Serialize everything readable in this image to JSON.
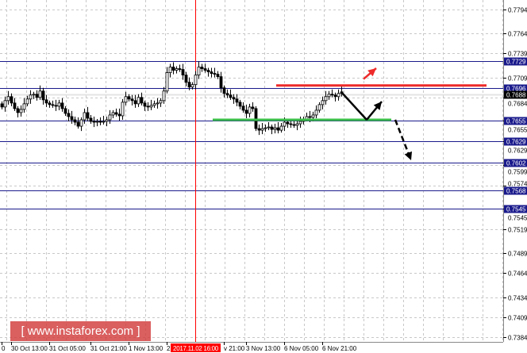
{
  "chart_data": {
    "type": "candlestick",
    "y_axis": {
      "ylim": [
        0.7384,
        0.7794
      ],
      "tick_labels": [
        "0.7794",
        "0.7764",
        "0.7739",
        "0.7709",
        "0.7684",
        "0.7655",
        "0.7629",
        "0.7599",
        "0.7574",
        "0.7545",
        "0.7519",
        "0.7489",
        "0.7464",
        "0.7434",
        "0.7409",
        "0.7384"
      ],
      "tick_values": [
        0.7794,
        0.7764,
        0.7739,
        0.7709,
        0.7684,
        0.7655,
        0.7629,
        0.7599,
        0.7574,
        0.7545,
        0.7519,
        0.7489,
        0.7464,
        0.7434,
        0.7409,
        0.7384
      ]
    },
    "x_axis": {
      "tick_labels": [
        "0",
        "30 Oct 13:00",
        "31 Oct 05:00",
        "31 Oct 21:00",
        "1 Nov 13:00",
        "2",
        "v 21:00",
        "3 Nov 13:00",
        "6 Nov 05:00",
        "6 Nov 21:00"
      ],
      "tick_candle_index": [
        0,
        3,
        15,
        28,
        40,
        52,
        70,
        77,
        89,
        101
      ],
      "cursor_label": "2017.11.02 16:00",
      "cursor_candle_index": 61
    },
    "grid": true,
    "current_price": "0.7688",
    "levels": [
      {
        "label": "0.7729",
        "value": 0.7729
      },
      {
        "label": "0.7696",
        "value": 0.7696
      },
      {
        "label": "0.7655",
        "value": 0.7655
      },
      {
        "label": "0.7629",
        "value": 0.7629
      },
      {
        "label": "0.7602",
        "value": 0.7602
      },
      {
        "label": "0.7568",
        "value": 0.7568
      },
      {
        "label": "0.7545",
        "value": 0.7545
      }
    ],
    "close": [
      0.7672,
      0.768,
      0.7685,
      0.7677,
      0.767,
      0.7665,
      0.7669,
      0.7676,
      0.7682,
      0.7687,
      0.7688,
      0.7684,
      0.7692,
      0.7681,
      0.7677,
      0.7675,
      0.7674,
      0.7673,
      0.7677,
      0.767,
      0.7664,
      0.766,
      0.7656,
      0.7653,
      0.7648,
      0.7656,
      0.7665,
      0.7658,
      0.7654,
      0.7653,
      0.7654,
      0.7653,
      0.7654,
      0.7656,
      0.7662,
      0.7665,
      0.7663,
      0.7661,
      0.7678,
      0.7685,
      0.7682,
      0.768,
      0.7676,
      0.7684,
      0.7677,
      0.7673,
      0.7672,
      0.7674,
      0.7676,
      0.7677,
      0.768,
      0.7692,
      0.7715,
      0.7722,
      0.7718,
      0.772,
      0.7719,
      0.7712,
      0.7703,
      0.7697,
      0.77,
      0.7712,
      0.7722,
      0.772,
      0.7718,
      0.7716,
      0.7714,
      0.7713,
      0.771,
      0.7696,
      0.7689,
      0.7687,
      0.7684,
      0.7682,
      0.7678,
      0.7673,
      0.7668,
      0.7664,
      0.7672,
      0.767,
      0.7645,
      0.7643,
      0.7645,
      0.7646,
      0.7647,
      0.7644,
      0.7646,
      0.7643,
      0.7648,
      0.7653,
      0.7651,
      0.765,
      0.7649,
      0.7651,
      0.7654,
      0.7657,
      0.766,
      0.7659,
      0.7662,
      0.7668,
      0.7675,
      0.768,
      0.7685,
      0.7688,
      0.7687,
      0.7685,
      0.7689,
      0.7691
    ],
    "annotations": {
      "resistance_line": {
        "value": 0.7699,
        "color": "#ee2a2a"
      },
      "support_line": {
        "value": 0.7656,
        "color": "#3cbf4a"
      },
      "arrow_colors": {
        "up_breakout": "#ee2a2a",
        "scenario": "#000000"
      }
    },
    "colors": {
      "level_line": "#1a1a8c",
      "cursor_line": "#ff0000",
      "bull": "#ffffff",
      "bear": "#000000"
    }
  },
  "watermark": "[ www.instaforex.com ]"
}
